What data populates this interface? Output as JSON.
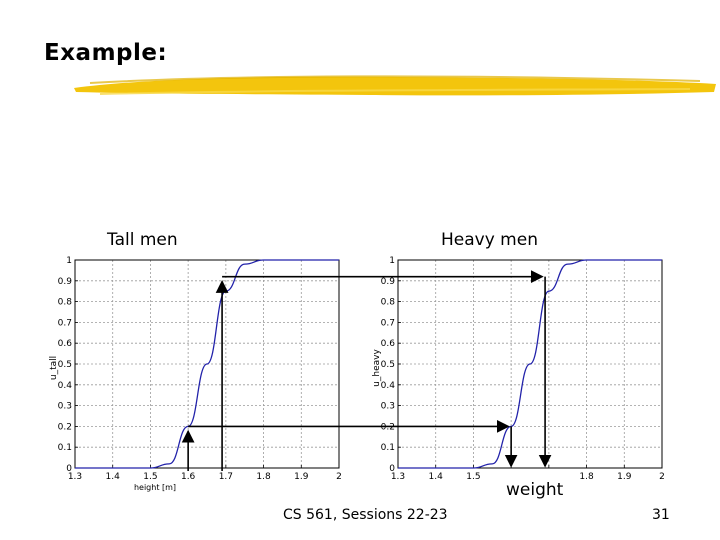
{
  "slide": {
    "title": "Example:",
    "footer_course": "CS 561,  Sessions 22-23",
    "page_number": "31",
    "accent_color": "#f2c200"
  },
  "annotations": {
    "left_label": "Tall men",
    "right_label": "Heavy men",
    "weight_label": "weight"
  },
  "chart_data": [
    {
      "type": "line",
      "title": "Tall men",
      "xlabel": "height [m]",
      "ylabel": "u_tall",
      "xlim": [
        1.3,
        2
      ],
      "ylim": [
        0,
        1
      ],
      "xticks": [
        "1.3",
        "1.4",
        "1.5",
        "1.6",
        "1.7",
        "1.8",
        "1.9",
        "2"
      ],
      "yticks": [
        "0",
        "0.1",
        "0.2",
        "0.3",
        "0.4",
        "0.5",
        "0.6",
        "0.7",
        "0.8",
        "0.9",
        "1"
      ],
      "grid": true,
      "line_color": "#2222aa",
      "series": [
        {
          "x": [
            1.3,
            1.5,
            1.55,
            1.6,
            1.65,
            1.7,
            1.75,
            1.8,
            2.0
          ],
          "y": [
            0,
            0,
            0.02,
            0.2,
            0.5,
            0.85,
            0.98,
            1,
            1
          ]
        }
      ],
      "guides": [
        {
          "x": 1.6,
          "y": 0.2
        },
        {
          "x": 1.69,
          "y": 0.92
        }
      ]
    },
    {
      "type": "line",
      "title": "Heavy men",
      "xlabel": "",
      "ylabel": "u_heavy",
      "xlim": [
        1.3,
        2
      ],
      "ylim": [
        0,
        1
      ],
      "xticks": [
        "1.3",
        "1.4",
        "1.5",
        "",
        "",
        "1.8",
        "1.9",
        "2"
      ],
      "yticks": [
        "0",
        "0.1",
        "0.2",
        "0.3",
        "0.4",
        "0.5",
        "0.6",
        "0.7",
        "0.8",
        "0.9",
        "1"
      ],
      "grid": true,
      "line_color": "#2222aa",
      "series": [
        {
          "x": [
            1.3,
            1.5,
            1.55,
            1.6,
            1.65,
            1.7,
            1.75,
            1.8,
            2.0
          ],
          "y": [
            0,
            0,
            0.02,
            0.2,
            0.5,
            0.85,
            0.98,
            1,
            1
          ]
        }
      ]
    }
  ]
}
